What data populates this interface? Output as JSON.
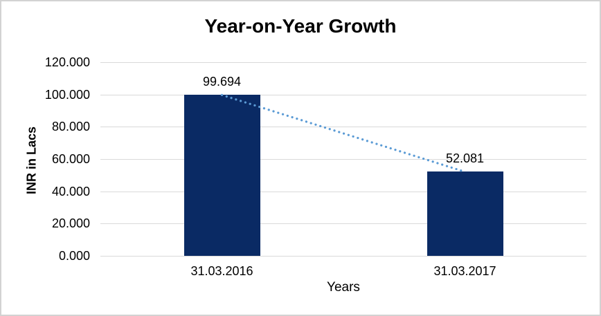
{
  "frame": {
    "background_color": "#ffffff",
    "border_color": "#d2d2d2"
  },
  "chart_data": {
    "type": "bar",
    "title": "Year-on-Year Growth",
    "xlabel": "Years",
    "ylabel": "INR in Lacs",
    "categories": [
      "31.03.2016",
      "31.03.2017"
    ],
    "series": [
      {
        "name": "INR in Lacs",
        "values": [
          99.694,
          52.081
        ]
      }
    ],
    "data_labels": [
      "99.694",
      "52.081"
    ],
    "ylim": [
      0,
      120
    ],
    "ytick_step": 20,
    "ytick_labels": [
      "0.000",
      "20.000",
      "40.000",
      "60.000",
      "80.000",
      "100.000",
      "120.000"
    ],
    "grid": true,
    "legend": "none",
    "colors": {
      "bar": "#0a2a64",
      "trendline": "#5b9bd5",
      "gridline": "#d9d9d9",
      "text": "#000000"
    },
    "trendline": {
      "style": "dotted",
      "color": "#5b9bd5",
      "from_value": 99.694,
      "to_value": 52.081
    }
  }
}
